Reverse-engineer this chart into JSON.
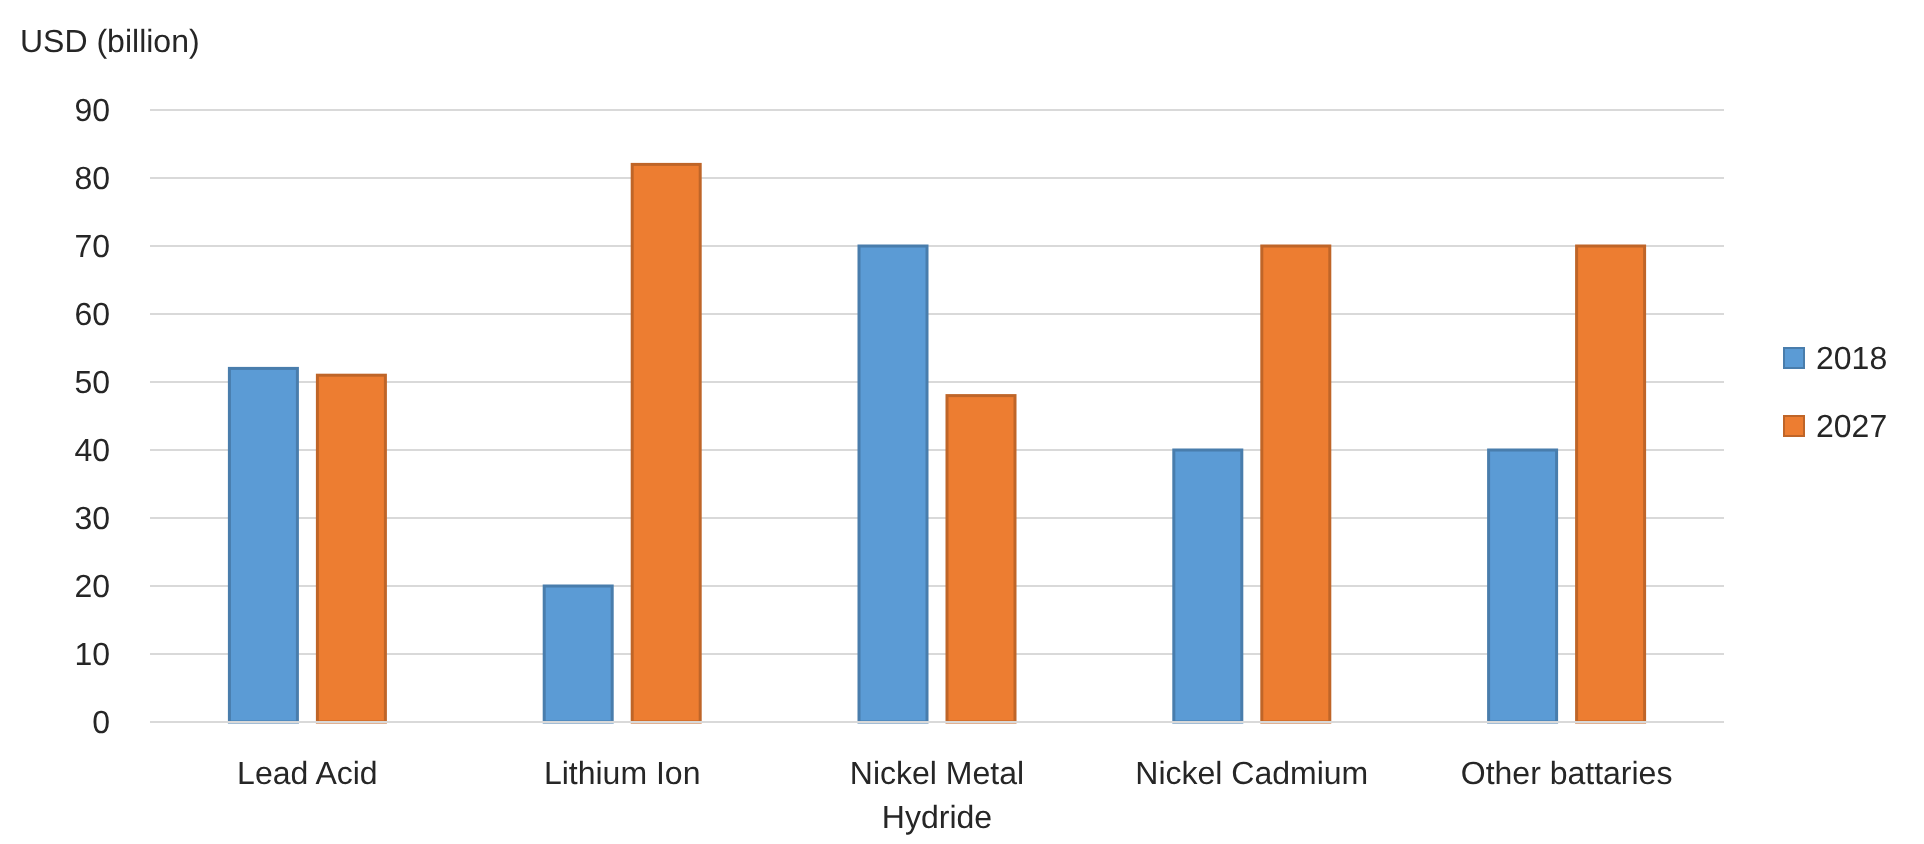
{
  "chart_data": {
    "type": "bar",
    "ylabel": "USD (billion)",
    "categories": [
      "Lead Acid",
      "Lithium Ion",
      "Nickel Metal Hydride",
      "Nickel Cadmium",
      "Other battaries"
    ],
    "series": [
      {
        "name": "2018",
        "color": "#5b9bd5",
        "values": [
          52,
          20,
          70,
          40,
          40
        ]
      },
      {
        "name": "2027",
        "color": "#ed7d31",
        "values": [
          51,
          82,
          48,
          70,
          70
        ]
      }
    ],
    "ylim": [
      0,
      90
    ],
    "yticks": [
      0,
      10,
      20,
      30,
      40,
      50,
      60,
      70,
      80,
      90
    ],
    "grid": "y",
    "legend": "right"
  }
}
